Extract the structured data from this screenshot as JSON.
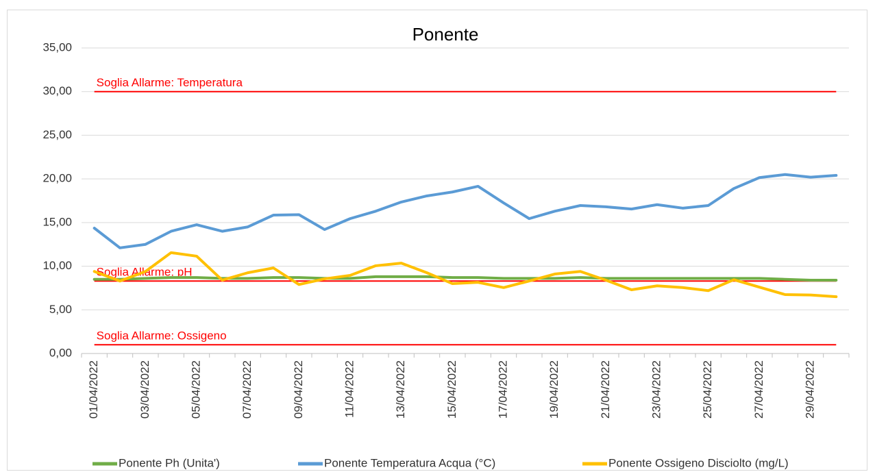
{
  "chart_data": {
    "type": "line",
    "title": "Ponente",
    "categories": [
      "01/04/2022",
      null,
      "03/04/2022",
      null,
      "05/04/2022",
      null,
      "07/04/2022",
      null,
      "09/04/2022",
      null,
      "11/04/2022",
      null,
      "13/04/2022",
      null,
      "15/04/2022",
      null,
      "17/04/2022",
      null,
      "19/04/2022",
      null,
      "21/04/2022",
      null,
      "23/04/2022",
      null,
      "25/04/2022",
      null,
      "27/04/2022",
      null,
      "29/04/2022",
      null
    ],
    "series": [
      {
        "name": "Ponente Ph (Unita')",
        "color": "#70ad47",
        "values": [
          8.5,
          8.5,
          8.6,
          8.7,
          8.7,
          8.6,
          8.6,
          8.7,
          8.7,
          8.6,
          8.6,
          8.8,
          8.8,
          8.8,
          8.7,
          8.7,
          8.6,
          8.6,
          8.6,
          8.7,
          8.6,
          8.6,
          8.6,
          8.6,
          8.6,
          8.6,
          8.6,
          8.5,
          8.4,
          8.4
        ]
      },
      {
        "name": "Ponente Temperatura Acqua (°C)",
        "color": "#5b9bd5",
        "values": [
          14.36,
          12.1,
          12.5,
          14.0,
          14.75,
          14.0,
          14.5,
          15.85,
          15.9,
          14.2,
          15.45,
          16.3,
          17.35,
          18.05,
          18.5,
          19.15,
          17.25,
          15.45,
          16.3,
          16.95,
          16.8,
          16.55,
          17.05,
          16.65,
          16.95,
          18.9,
          20.15,
          20.5,
          20.2,
          20.4
        ]
      },
      {
        "name": "Ponente Ossigeno Disciolto (mg/L)",
        "color": "#ffc000",
        "values": [
          9.4,
          8.3,
          9.4,
          11.55,
          11.15,
          8.4,
          9.25,
          9.8,
          7.9,
          8.55,
          8.95,
          10.05,
          10.35,
          9.25,
          8.0,
          8.15,
          7.55,
          8.3,
          9.1,
          9.4,
          8.4,
          7.3,
          7.75,
          7.55,
          7.2,
          8.45,
          7.6,
          6.75,
          6.7,
          6.5
        ]
      }
    ],
    "thresholds": [
      {
        "label": "Soglia Allarme: Temperatura",
        "value": 30,
        "color": "#ff0000"
      },
      {
        "label": "Soglia Allarme: pH",
        "value": 8.3,
        "color": "#ff0000"
      },
      {
        "label": "Soglia Allarme: Ossigeno",
        "value": 1,
        "color": "#ff0000"
      }
    ],
    "ylim": [
      0,
      35
    ],
    "yticks": [
      {
        "value": 0,
        "label": "0,00"
      },
      {
        "value": 5,
        "label": "5,00"
      },
      {
        "value": 10,
        "label": "10,00"
      },
      {
        "value": 15,
        "label": "15,00"
      },
      {
        "value": 20,
        "label": "20,00"
      },
      {
        "value": 25,
        "label": "25,00"
      },
      {
        "value": 30,
        "label": "30,00"
      },
      {
        "value": 35,
        "label": "35,00"
      }
    ],
    "grid": true,
    "legend": "bottom"
  }
}
